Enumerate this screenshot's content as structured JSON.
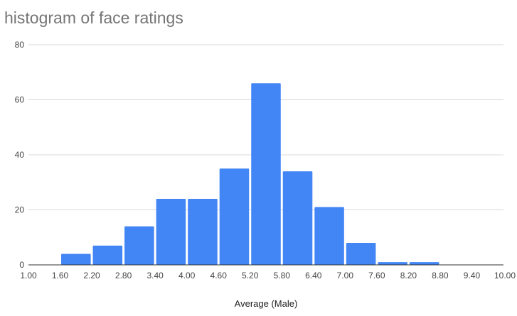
{
  "chart_data": {
    "type": "bar",
    "title": "histogram of face ratings",
    "xlabel": "Average (Male)",
    "ylabel": "",
    "ylim": [
      0,
      80
    ],
    "xlim": [
      1.0,
      10.0
    ],
    "y_ticks": [
      "0",
      "20",
      "40",
      "60",
      "80"
    ],
    "x_ticks": [
      "1.00",
      "1.60",
      "2.20",
      "2.80",
      "3.40",
      "4.00",
      "4.60",
      "5.20",
      "5.80",
      "6.40",
      "7.00",
      "7.60",
      "8.20",
      "8.80",
      "9.40",
      "10.00"
    ],
    "bins": [
      {
        "start": 1.6,
        "end": 2.2,
        "value": 4
      },
      {
        "start": 2.2,
        "end": 2.8,
        "value": 7
      },
      {
        "start": 2.8,
        "end": 3.4,
        "value": 14
      },
      {
        "start": 3.4,
        "end": 4.0,
        "value": 24
      },
      {
        "start": 4.0,
        "end": 4.6,
        "value": 24
      },
      {
        "start": 4.6,
        "end": 5.2,
        "value": 35
      },
      {
        "start": 5.2,
        "end": 5.8,
        "value": 66
      },
      {
        "start": 5.8,
        "end": 6.4,
        "value": 34
      },
      {
        "start": 6.4,
        "end": 7.0,
        "value": 21
      },
      {
        "start": 7.0,
        "end": 7.6,
        "value": 8
      },
      {
        "start": 7.6,
        "end": 8.2,
        "value": 1
      },
      {
        "start": 8.2,
        "end": 8.8,
        "value": 1
      }
    ],
    "bar_color": "#4285f4",
    "grid": true,
    "legend": "none"
  }
}
